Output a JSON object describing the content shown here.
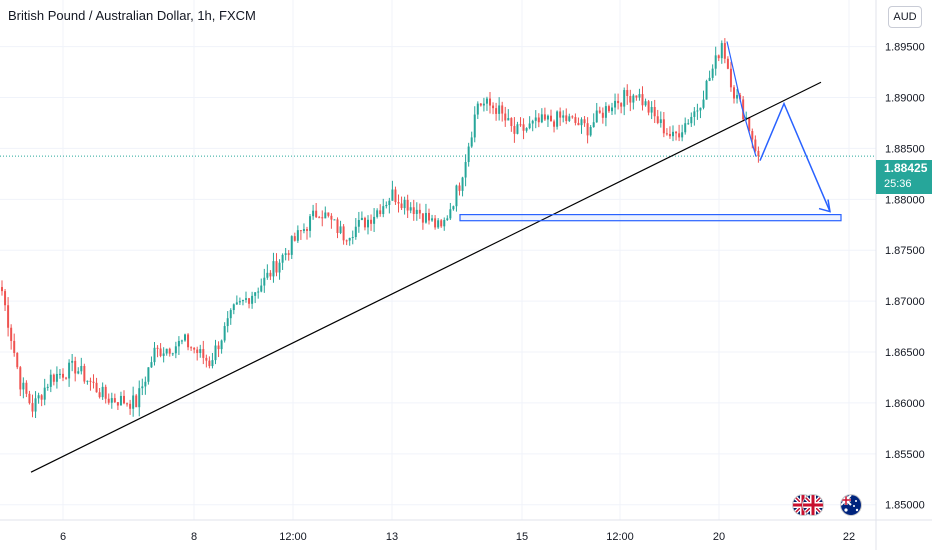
{
  "header": {
    "symbol_title": "British Pound / Australian Dollar, 1h, FXCM",
    "currency": "AUD"
  },
  "last_price": {
    "value": "1.88425",
    "countdown": "25:36",
    "color": "#26a69a"
  },
  "colors": {
    "up": "#26a69a",
    "down": "#ef5350",
    "grid": "#f0f3fa",
    "trendline": "#000000",
    "annotation": "#2962ff"
  },
  "icons": [
    "uk-flag-icon",
    "uk-flag-icon",
    "australia-flag-icon"
  ],
  "chart_data": {
    "type": "candlestick",
    "y_ticks": [
      "1.89500",
      "1.89000",
      "1.88500",
      "1.88000",
      "1.87500",
      "1.87000",
      "1.86500",
      "1.86000",
      "1.85500",
      "1.85000"
    ],
    "y_tick_values": [
      1.895,
      1.89,
      1.885,
      1.88,
      1.875,
      1.87,
      1.865,
      1.86,
      1.855,
      1.85
    ],
    "x_ticks": [
      "6",
      "8",
      "12:00",
      "13",
      "15",
      "12:00",
      "20",
      "22"
    ],
    "ylim": [
      1.8485,
      1.8985
    ],
    "grid": true,
    "annotations": {
      "support_zone": {
        "price_low": 1.8779,
        "price_high": 1.8785
      },
      "ascending_trendline": {
        "from_price": 1.8532,
        "to_price": 1.8915
      },
      "projection_points": [
        1.8838,
        1.8894,
        1.8788
      ]
    },
    "anchors": [
      {
        "i": 0,
        "p": 1.871
      },
      {
        "i": 6,
        "p": 1.862
      },
      {
        "i": 10,
        "p": 1.8595
      },
      {
        "i": 16,
        "p": 1.8625
      },
      {
        "i": 24,
        "p": 1.8635
      },
      {
        "i": 34,
        "p": 1.8605
      },
      {
        "i": 44,
        "p": 1.86
      },
      {
        "i": 50,
        "p": 1.865
      },
      {
        "i": 60,
        "p": 1.866
      },
      {
        "i": 68,
        "p": 1.864
      },
      {
        "i": 76,
        "p": 1.869
      },
      {
        "i": 86,
        "p": 1.872
      },
      {
        "i": 96,
        "p": 1.876
      },
      {
        "i": 104,
        "p": 1.879
      },
      {
        "i": 112,
        "p": 1.8765
      },
      {
        "i": 120,
        "p": 1.878
      },
      {
        "i": 128,
        "p": 1.8805
      },
      {
        "i": 136,
        "p": 1.879
      },
      {
        "i": 144,
        "p": 1.877
      },
      {
        "i": 150,
        "p": 1.8815
      },
      {
        "i": 156,
        "p": 1.8895
      },
      {
        "i": 162,
        "p": 1.889
      },
      {
        "i": 168,
        "p": 1.8865
      },
      {
        "i": 176,
        "p": 1.8875
      },
      {
        "i": 184,
        "p": 1.888
      },
      {
        "i": 192,
        "p": 1.887
      },
      {
        "i": 200,
        "p": 1.8895
      },
      {
        "i": 208,
        "p": 1.8905
      },
      {
        "i": 214,
        "p": 1.888
      },
      {
        "i": 220,
        "p": 1.886
      },
      {
        "i": 228,
        "p": 1.889
      },
      {
        "i": 234,
        "p": 1.8935
      },
      {
        "i": 236,
        "p": 1.8955
      },
      {
        "i": 240,
        "p": 1.8905
      },
      {
        "i": 244,
        "p": 1.888
      },
      {
        "i": 248,
        "p": 1.88425
      }
    ]
  }
}
